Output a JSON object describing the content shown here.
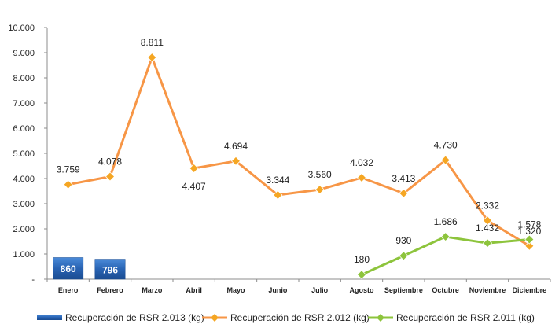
{
  "chart_data": {
    "type": "line",
    "title": "",
    "xlabel": "",
    "ylabel": "",
    "ylim": [
      0,
      10000
    ],
    "yticks": [
      {
        "value": 0,
        "label": "-"
      },
      {
        "value": 1000,
        "label": "1.000"
      },
      {
        "value": 2000,
        "label": "2.000"
      },
      {
        "value": 3000,
        "label": "3.000"
      },
      {
        "value": 4000,
        "label": "4.000"
      },
      {
        "value": 5000,
        "label": "5.000"
      },
      {
        "value": 6000,
        "label": "6.000"
      },
      {
        "value": 7000,
        "label": "7.000"
      },
      {
        "value": 8000,
        "label": "8.000"
      },
      {
        "value": 9000,
        "label": "9.000"
      },
      {
        "value": 10000,
        "label": "10.000"
      }
    ],
    "grid": false,
    "legend_position": "bottom",
    "categories": [
      "Enero",
      "Febrero",
      "Marzo",
      "Abril",
      "Mayo",
      "Junio",
      "Julio",
      "Agosto",
      "Septiembre",
      "Octubre",
      "Noviembre",
      "Diciembre"
    ],
    "series": [
      {
        "name": "Recuperación de RSR 2.013 (kg)",
        "kind": "bar",
        "color": "#2E6FC4",
        "values": [
          860,
          796,
          null,
          null,
          null,
          null,
          null,
          null,
          null,
          null,
          null,
          null
        ],
        "labels": [
          "860",
          "796",
          null,
          null,
          null,
          null,
          null,
          null,
          null,
          null,
          null,
          null
        ]
      },
      {
        "name": "Recuperación de RSR 2.012 (kg)",
        "kind": "line",
        "color": "#F79646",
        "marker_color": "#F5A623",
        "values": [
          3759,
          4078,
          8811,
          4407,
          4694,
          3344,
          3560,
          4032,
          3413,
          4730,
          2332,
          1320
        ],
        "labels": [
          "3.759",
          "4.078",
          "8.811",
          "4.407",
          "4.694",
          "3.344",
          "3.560",
          "4.032",
          "3.413",
          "4.730",
          "2.332",
          "1.320"
        ],
        "label_pos": [
          "above",
          "above",
          "above",
          "below",
          "above",
          "above",
          "above",
          "above",
          "above",
          "above",
          "above",
          "above"
        ]
      },
      {
        "name": "Recuperación de RSR 2.011 (kg)",
        "kind": "line",
        "color": "#8DC43C",
        "marker_color": "#8DC43C",
        "values": [
          null,
          null,
          null,
          null,
          null,
          null,
          null,
          180,
          930,
          1686,
          1432,
          1578
        ],
        "labels": [
          null,
          null,
          null,
          null,
          null,
          null,
          null,
          "180",
          "930",
          "1.686",
          "1.432",
          "1.578"
        ],
        "label_pos": [
          null,
          null,
          null,
          null,
          null,
          null,
          null,
          "above",
          "above",
          "above",
          "above",
          "above"
        ]
      }
    ]
  }
}
